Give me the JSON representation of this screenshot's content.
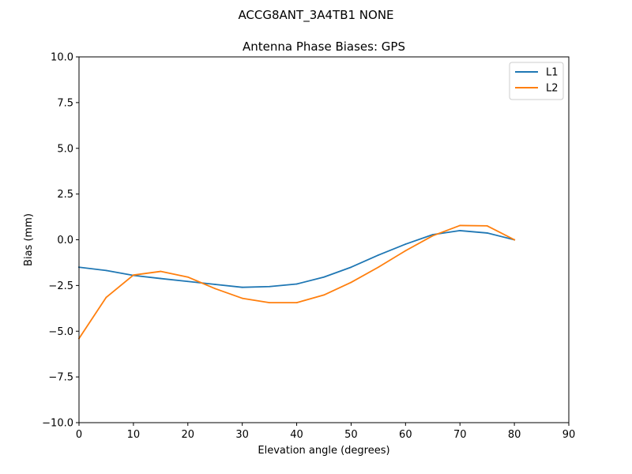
{
  "figure": {
    "suptitle": "ACCG8ANT_3A4TB1 NONE"
  },
  "chart_data": {
    "type": "line",
    "title": "Antenna Phase Biases: GPS",
    "xlabel": "Elevation angle (degrees)",
    "ylabel": "Bias (mm)",
    "xlim": [
      0,
      90
    ],
    "ylim": [
      -10,
      10
    ],
    "xticks": [
      0,
      10,
      20,
      30,
      40,
      50,
      60,
      70,
      80,
      90
    ],
    "xtick_labels": [
      "0",
      "10",
      "20",
      "30",
      "40",
      "50",
      "60",
      "70",
      "80",
      "90"
    ],
    "yticks": [
      -10,
      -7.5,
      -5,
      -2.5,
      0,
      2.5,
      5,
      7.5,
      10
    ],
    "ytick_labels": [
      "−10.0",
      "−7.5",
      "−5.0",
      "−2.5",
      "0.0",
      "2.5",
      "5.0",
      "7.5",
      "10.0"
    ],
    "grid": false,
    "legend_position": "top-right",
    "x": [
      0,
      5,
      10,
      15,
      20,
      25,
      30,
      35,
      40,
      45,
      50,
      55,
      60,
      65,
      70,
      75,
      80
    ],
    "series": [
      {
        "name": "L1",
        "color": "#1f77b4",
        "values": [
          -1.5,
          -1.68,
          -1.95,
          -2.12,
          -2.28,
          -2.44,
          -2.6,
          -2.56,
          -2.42,
          -2.04,
          -1.5,
          -0.84,
          -0.24,
          0.28,
          0.5,
          0.37,
          0.0
        ]
      },
      {
        "name": "L2",
        "color": "#ff7f0e",
        "values": [
          -5.4,
          -3.15,
          -1.93,
          -1.73,
          -2.04,
          -2.67,
          -3.2,
          -3.44,
          -3.44,
          -3.02,
          -2.33,
          -1.5,
          -0.6,
          0.22,
          0.78,
          0.76,
          0.0
        ]
      }
    ]
  }
}
